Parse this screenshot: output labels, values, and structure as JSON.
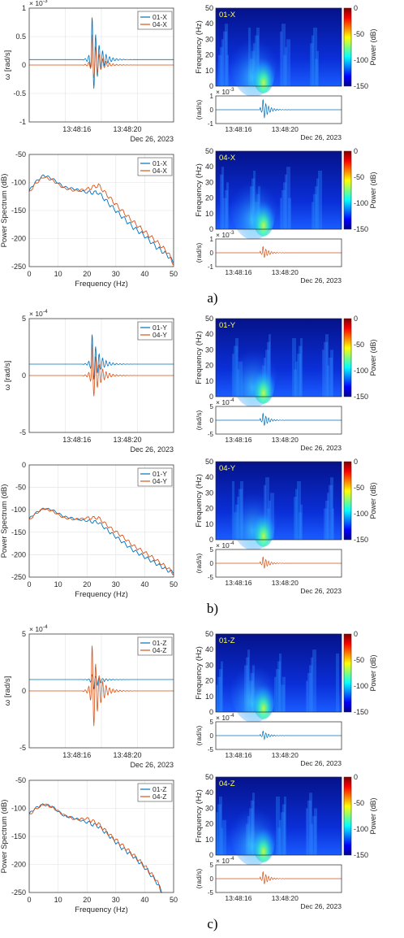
{
  "figure": {
    "panels": [
      {
        "label": "a)",
        "axis": "X",
        "time_series": {
          "type": "line",
          "ylabel": "ω [rad/s]",
          "exponent": "× 10^-3",
          "exponent_base": "× 10",
          "exponent_power": "-3",
          "yticks": [
            "1",
            "0.5",
            "0",
            "-0.5",
            "-1"
          ],
          "ylim": [
            -1.05,
            1.05
          ],
          "xticks": [
            "13:48:16",
            "13:48:20"
          ],
          "date": "Dec 26, 2023",
          "legend": [
            "01-X",
            "04-X"
          ],
          "series": [
            {
              "name": "01-X",
              "offset": 0.1,
              "peak": 1.0,
              "trough": -0.7,
              "color": "#0072BD"
            },
            {
              "name": "04-X",
              "offset": 0.0,
              "peak": 0.65,
              "trough": -0.35,
              "color": "#D95319"
            }
          ]
        },
        "spectrum": {
          "type": "line",
          "xlabel": "Frequency (Hz)",
          "ylabel": "Power Spectrum (dB)",
          "xticks": [
            "0",
            "10",
            "20",
            "30",
            "40",
            "50"
          ],
          "yticks": [
            "-50",
            "-100",
            "-150",
            "-200",
            "-250"
          ],
          "xlim": [
            0,
            50
          ],
          "ylim": [
            -250,
            -50
          ],
          "legend": [
            "01-X",
            "04-X"
          ],
          "series": [
            {
              "name": "01-X",
              "x": [
                0,
                2,
                5,
                8,
                12,
                16,
                20,
                24,
                28,
                32,
                36,
                40,
                44,
                48,
                50
              ],
              "y": [
                -115,
                -100,
                -87,
                -93,
                -108,
                -112,
                -118,
                -118,
                -140,
                -160,
                -180,
                -195,
                -215,
                -230,
                -243
              ],
              "color": "#0072BD"
            },
            {
              "name": "04-X",
              "x": [
                0,
                2,
                5,
                8,
                12,
                16,
                20,
                24,
                28,
                32,
                36,
                40,
                44,
                48,
                50
              ],
              "y": [
                -118,
                -103,
                -90,
                -96,
                -110,
                -115,
                -112,
                -105,
                -128,
                -150,
                -170,
                -188,
                -205,
                -225,
                -245
              ],
              "color": "#D95319"
            }
          ]
        },
        "spectrograms": [
          {
            "tag": "01-X",
            "waveform_color": "#0072BD",
            "mini_exponent": "× 10^-3",
            "mini_power": "-3",
            "mini_yticks": [
              "1",
              "0",
              "-1"
            ],
            "mini_ylim": [
              -1.1,
              1.1
            ],
            "mini_peak": 1.0
          },
          {
            "tag": "04-X",
            "waveform_color": "#D95319",
            "mini_exponent": "× 10^-3",
            "mini_power": "-3",
            "mini_yticks": [
              "1",
              "0",
              "-1"
            ],
            "mini_ylim": [
              -1.1,
              1.1
            ],
            "mini_peak": 0.6
          }
        ]
      },
      {
        "label": "b)",
        "axis": "Y",
        "time_series": {
          "type": "line",
          "ylabel": "ω [rad/s]",
          "exponent": "× 10^-4",
          "exponent_base": "× 10",
          "exponent_power": "-4",
          "yticks": [
            "5",
            "0",
            "-5"
          ],
          "ylim": [
            -5,
            5
          ],
          "xticks": [
            "13:48:16",
            "13:48:20"
          ],
          "date": "Dec 26, 2023",
          "legend": [
            "01-Y",
            "04-Y"
          ],
          "series": [
            {
              "name": "01-Y",
              "offset": 1.0,
              "peak": 4.0,
              "trough": -1.0,
              "color": "#0072BD"
            },
            {
              "name": "04-Y",
              "offset": 0.0,
              "peak": 3.2,
              "trough": -2.7,
              "color": "#D95319"
            }
          ]
        },
        "spectrum": {
          "type": "line",
          "xlabel": "Frequency (Hz)",
          "ylabel": "Power Spectrum (dB)",
          "xticks": [
            "0",
            "10",
            "20",
            "30",
            "40",
            "50"
          ],
          "yticks": [
            "0",
            "-50",
            "-100",
            "-150",
            "-200",
            "-250"
          ],
          "xlim": [
            0,
            50
          ],
          "ylim": [
            -250,
            0
          ],
          "legend": [
            "01-Y",
            "04-Y"
          ],
          "series": [
            {
              "name": "01-Y",
              "x": [
                0,
                2,
                5,
                8,
                12,
                16,
                20,
                24,
                28,
                32,
                36,
                40,
                44,
                48,
                50
              ],
              "y": [
                -120,
                -108,
                -97,
                -100,
                -115,
                -120,
                -125,
                -128,
                -150,
                -170,
                -190,
                -205,
                -220,
                -235,
                -240
              ],
              "color": "#0072BD"
            },
            {
              "name": "04-Y",
              "x": [
                0,
                2,
                5,
                8,
                12,
                16,
                20,
                24,
                28,
                32,
                36,
                40,
                44,
                48,
                50
              ],
              "y": [
                -123,
                -110,
                -97,
                -103,
                -118,
                -122,
                -118,
                -118,
                -140,
                -158,
                -180,
                -195,
                -212,
                -230,
                -242
              ],
              "color": "#D95319"
            }
          ]
        },
        "spectrograms": [
          {
            "tag": "01-Y",
            "waveform_color": "#0072BD",
            "mini_exponent": "× 10^-4",
            "mini_power": "-4",
            "mini_yticks": [
              "5",
              "0",
              "-5"
            ],
            "mini_ylim": [
              -5,
              5
            ],
            "mini_peak": 3.0
          },
          {
            "tag": "04-Y",
            "waveform_color": "#D95319",
            "mini_exponent": "× 10^-4",
            "mini_power": "-4",
            "mini_yticks": [
              "5",
              "0",
              "-5"
            ],
            "mini_ylim": [
              -5,
              5
            ],
            "mini_peak": 2.8
          }
        ]
      },
      {
        "label": "c)",
        "axis": "Z",
        "time_series": {
          "type": "line",
          "ylabel": "ω [rad/s]",
          "exponent": "× 10^-4",
          "exponent_base": "× 10",
          "exponent_power": "-4",
          "yticks": [
            "5",
            "0",
            "-5"
          ],
          "ylim": [
            -5,
            5
          ],
          "xticks": [
            "13:48:16",
            "13:48:20"
          ],
          "date": "Dec 26, 2023",
          "legend": [
            "01-Z",
            "04-Z"
          ],
          "series": [
            {
              "name": "01-Z",
              "offset": 1.0,
              "peak": 1.5,
              "trough": -0.3,
              "color": "#0072BD"
            },
            {
              "name": "04-Z",
              "offset": 0.0,
              "peak": 4.6,
              "trough": -4.6,
              "color": "#D95319"
            }
          ]
        },
        "spectrum": {
          "type": "line",
          "xlabel": "Frequency (Hz)",
          "ylabel": "Power Spectrum (dB)",
          "xticks": [
            "0",
            "10",
            "20",
            "30",
            "40",
            "50"
          ],
          "yticks": [
            "-50",
            "-100",
            "-150",
            "-200",
            "-250"
          ],
          "xlim": [
            0,
            50
          ],
          "ylim": [
            -250,
            -50
          ],
          "legend": [
            "01-Z",
            "04-Z"
          ],
          "series": [
            {
              "name": "01-Z",
              "x": [
                0,
                2,
                5,
                8,
                12,
                16,
                20,
                24,
                28,
                32,
                36,
                40,
                44,
                46
              ],
              "y": [
                -110,
                -100,
                -93,
                -97,
                -113,
                -118,
                -125,
                -132,
                -150,
                -170,
                -185,
                -205,
                -230,
                -250
              ],
              "color": "#0072BD"
            },
            {
              "name": "04-Z",
              "x": [
                0,
                2,
                5,
                8,
                12,
                16,
                20,
                24,
                28,
                32,
                36,
                40,
                44,
                46
              ],
              "y": [
                -112,
                -102,
                -92,
                -98,
                -112,
                -120,
                -118,
                -128,
                -148,
                -165,
                -183,
                -203,
                -228,
                -250
              ],
              "color": "#D95319"
            }
          ]
        },
        "spectrograms": [
          {
            "tag": "01-Z",
            "waveform_color": "#0072BD",
            "mini_exponent": "× 10^-4",
            "mini_power": "-4",
            "mini_yticks": [
              "5",
              "0",
              "-5"
            ],
            "mini_ylim": [
              -5,
              5
            ],
            "mini_peak": 2.0
          },
          {
            "tag": "04-Z",
            "waveform_color": "#D95319",
            "mini_exponent": "× 10^-4",
            "mini_power": "-4",
            "mini_yticks": [
              "5",
              "0",
              "-5"
            ],
            "mini_ylim": [
              -5,
              5
            ],
            "mini_peak": 3.0
          }
        ]
      }
    ],
    "spectrogram_axes": {
      "ylabel": "Frequency (Hz)",
      "yticks": [
        "50",
        "40",
        "30",
        "20",
        "10",
        "0"
      ],
      "ylim": [
        0,
        50
      ],
      "colorbar_label": "Power (dB)",
      "mini_ylabel": "(rad/s)",
      "xticks": [
        "13:48:16",
        "13:48:20"
      ],
      "date": "Dec 26, 2023"
    },
    "colorbar_ticks_ab": [
      "0",
      "-50",
      "-100",
      "-150"
    ],
    "colorbar_ticks_c": [
      "0",
      "-50",
      "-100",
      "-150"
    ]
  },
  "chart_data": [
    {
      "type": "line",
      "title": "",
      "ylabel": "ω [rad/s]",
      "xticks": [
        "13:48:16",
        "13:48:20"
      ],
      "series": [
        {
          "name": "01-X"
        },
        {
          "name": "04-X"
        }
      ]
    },
    {
      "type": "line",
      "title": "",
      "xlabel": "Frequency (Hz)",
      "ylabel": "Power Spectrum (dB)",
      "xlim": [
        0,
        50
      ],
      "ylim": [
        -250,
        -50
      ],
      "series": [
        {
          "name": "01-X"
        },
        {
          "name": "04-X"
        }
      ]
    },
    {
      "type": "heatmap",
      "title": "",
      "ylabel": "Frequency (Hz)",
      "colorbar": "Power (dB)",
      "zlim": [
        -150,
        0
      ],
      "series": [
        {
          "name": "01-X"
        },
        {
          "name": "04-X"
        },
        {
          "name": "01-Y"
        },
        {
          "name": "04-Y"
        },
        {
          "name": "01-Z"
        },
        {
          "name": "04-Z"
        }
      ]
    },
    {
      "type": "line",
      "title": "",
      "ylabel": "ω [rad/s]",
      "series": [
        {
          "name": "01-Y"
        },
        {
          "name": "04-Y"
        }
      ]
    },
    {
      "type": "line",
      "title": "",
      "xlabel": "Frequency (Hz)",
      "ylabel": "Power Spectrum (dB)",
      "xlim": [
        0,
        50
      ],
      "ylim": [
        -250,
        0
      ],
      "series": [
        {
          "name": "01-Y"
        },
        {
          "name": "04-Y"
        }
      ]
    },
    {
      "type": "line",
      "title": "",
      "ylabel": "ω [rad/s]",
      "series": [
        {
          "name": "01-Z"
        },
        {
          "name": "04-Z"
        }
      ]
    },
    {
      "type": "line",
      "title": "",
      "xlabel": "Frequency (Hz)",
      "ylabel": "Power Spectrum (dB)",
      "xlim": [
        0,
        50
      ],
      "ylim": [
        -250,
        -50
      ],
      "series": [
        {
          "name": "01-Z"
        },
        {
          "name": "04-Z"
        }
      ]
    }
  ]
}
